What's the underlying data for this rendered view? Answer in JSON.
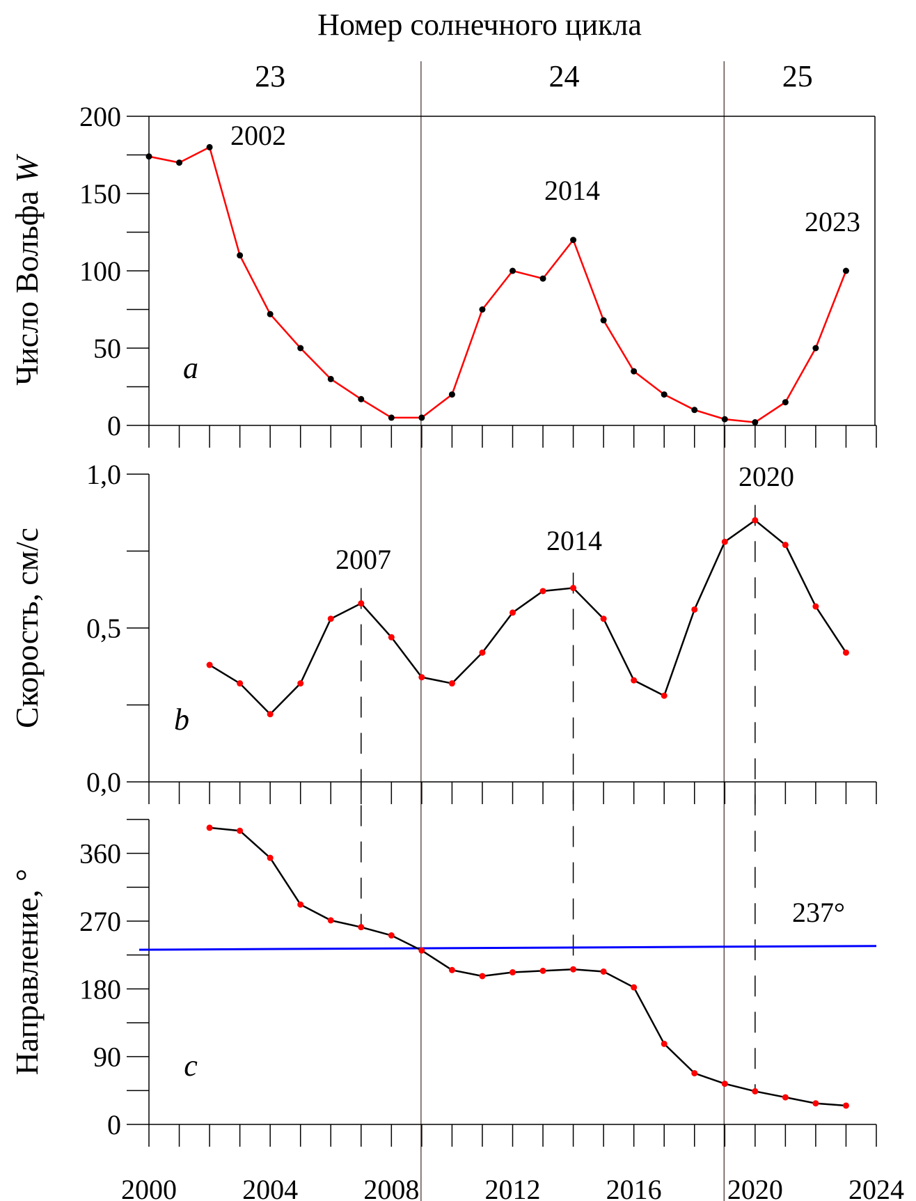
{
  "colors": {
    "wolf_line": "#ff0000",
    "marker_black": "#000000",
    "marker_red": "#ff0000",
    "mean_line": "#0000ff",
    "cycle_line": "#4a3a36"
  },
  "chart_data": {
    "type": "line",
    "top_title": "Номер солнечного цикла",
    "cycles": [
      {
        "label": "23",
        "center_year": 2004.0
      },
      {
        "label": "24",
        "center_year": 2013.7
      },
      {
        "label": "25",
        "center_year": 2021.4
      }
    ],
    "cycle_boundaries": [
      2009,
      2019
    ],
    "x": {
      "ticks": [
        2000,
        2004,
        2008,
        2012,
        2016,
        2020,
        2024
      ],
      "tick_labels": [
        "2000",
        "2004",
        "2008",
        "2012",
        "2016",
        "2020",
        "2024"
      ],
      "range": [
        2000,
        2024
      ],
      "minor_step": 1
    },
    "panels": [
      {
        "id": "a",
        "letter": "a",
        "ylabel": "Число Вольфа ",
        "ylabel_italic": "W",
        "ylim": [
          0,
          200
        ],
        "yticks": [
          0,
          50,
          100,
          150,
          200
        ],
        "ytick_labels": [
          "0",
          "50",
          "100",
          "150",
          "200"
        ],
        "yminor_step": 25,
        "series": {
          "name": "Число Вольфа W",
          "x": [
            2000,
            2001,
            2002,
            2003,
            2004,
            2005,
            2006,
            2007,
            2008,
            2009,
            2010,
            2011,
            2012,
            2013,
            2014,
            2015,
            2016,
            2017,
            2018,
            2019,
            2020,
            2021,
            2022,
            2023
          ],
          "y": [
            174,
            170,
            180,
            110,
            72,
            50,
            30,
            17,
            5,
            5,
            20,
            75,
            100,
            95,
            120,
            68,
            35,
            20,
            10,
            4,
            2,
            15,
            50,
            100
          ]
        },
        "annotations": [
          {
            "text": "2002",
            "x": 2002
          },
          {
            "text": "2014",
            "x": 2014
          },
          {
            "text": "2023",
            "x": 2023
          }
        ]
      },
      {
        "id": "b",
        "letter": "b",
        "ylabel": "Скорость, см/с",
        "ylim": [
          0,
          1.0
        ],
        "yticks": [
          0,
          0.5,
          1.0
        ],
        "ytick_labels": [
          "0,0",
          "0,5",
          "1,0"
        ],
        "yminor_step": 0.25,
        "series": {
          "name": "Скорость",
          "x": [
            2002,
            2003,
            2004,
            2005,
            2006,
            2007,
            2008,
            2009,
            2010,
            2011,
            2012,
            2013,
            2014,
            2015,
            2016,
            2017,
            2018,
            2019,
            2020,
            2021,
            2022,
            2023
          ],
          "y": [
            0.38,
            0.32,
            0.22,
            0.32,
            0.53,
            0.58,
            0.47,
            0.34,
            0.32,
            0.42,
            0.55,
            0.62,
            0.63,
            0.53,
            0.33,
            0.28,
            0.56,
            0.78,
            0.85,
            0.77,
            0.57,
            0.42
          ]
        },
        "annotations": [
          {
            "text": "2007",
            "x": 2007
          },
          {
            "text": "2014",
            "x": 2014
          },
          {
            "text": "2020",
            "x": 2020
          }
        ]
      },
      {
        "id": "c",
        "letter": "c",
        "ylabel": "Направление, °",
        "ylim": [
          0,
          405
        ],
        "yticks": [
          0,
          90,
          180,
          270,
          360
        ],
        "ytick_labels": [
          "0",
          "90",
          "180",
          "270",
          "360"
        ],
        "yminor_step": 45,
        "series": {
          "name": "Направление",
          "x": [
            2002,
            2003,
            2004,
            2005,
            2006,
            2007,
            2008,
            2009,
            2010,
            2011,
            2012,
            2013,
            2014,
            2015,
            2016,
            2017,
            2018,
            2019,
            2020,
            2021,
            2022,
            2023
          ],
          "y": [
            394,
            390,
            354,
            292,
            271,
            262,
            251,
            231,
            205,
            197,
            202,
            204,
            206,
            203,
            182,
            107,
            68,
            54,
            44,
            36,
            28,
            25
          ]
        },
        "mean_line": {
          "label": "237°",
          "y_start": 232,
          "y_end": 237
        }
      }
    ],
    "dashed_markers": [
      2007,
      2014,
      2020
    ],
    "grid": false
  }
}
